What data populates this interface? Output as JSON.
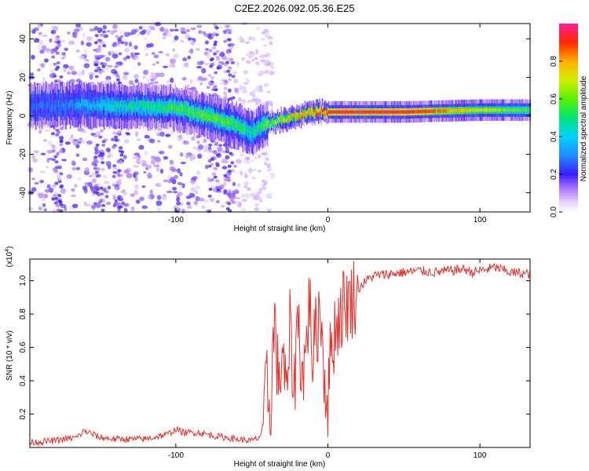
{
  "title": "C2E2.2026.092.05.36.E25",
  "chart_data": [
    {
      "type": "heatmap",
      "name": "spectrogram",
      "xlabel": "Height of straight line (km)",
      "ylabel": "Frequency (Hz)",
      "xlim": [
        -196,
        133
      ],
      "ylim": [
        -50,
        48
      ],
      "xticks": [
        "-100",
        "0",
        "100"
      ],
      "xtick_values": [
        -100,
        0,
        100
      ],
      "yticks": [
        "-40",
        "-20",
        "0",
        "20",
        "40"
      ],
      "ytick_values": [
        -40,
        -20,
        0,
        20,
        40
      ],
      "ridge_x": [
        -196,
        -160,
        -140,
        -120,
        -100,
        -80,
        -60,
        -50,
        -40,
        -30,
        -20,
        -10,
        0,
        50,
        100,
        133
      ],
      "ridge_freq": [
        5,
        6,
        5,
        5,
        4,
        0,
        -5,
        -9,
        -4,
        -2,
        0,
        2,
        2,
        2,
        3,
        3
      ],
      "ridge_amplitude": [
        0.25,
        0.35,
        0.45,
        0.5,
        0.55,
        0.6,
        0.55,
        0.45,
        0.6,
        0.7,
        0.8,
        0.85,
        0.95,
        0.95,
        0.7,
        0.55
      ]
    },
    {
      "type": "colorbar",
      "name": "colorbar",
      "label": "Normalized spectral amplitude",
      "range": [
        0,
        1
      ],
      "ticks": [
        "0.0",
        "0.2",
        "0.4",
        "0.6",
        "0.8"
      ],
      "tick_values": [
        0.0,
        0.2,
        0.4,
        0.6,
        0.8
      ]
    },
    {
      "type": "line",
      "name": "snr",
      "xlabel": "Height of straight line (km)",
      "ylabel": "SNR (10 * v/v)",
      "scale_label": "(x10",
      "scale_exponent": "4",
      "scale_suffix": ")",
      "xlim": [
        -196,
        133
      ],
      "ylim": [
        0,
        1.13
      ],
      "xticks": [
        "-100",
        "0",
        "100"
      ],
      "xtick_values": [
        -100,
        0,
        100
      ],
      "yticks": [
        "0.2",
        "0.4",
        "0.6",
        "0.8",
        "1.0"
      ],
      "ytick_values": [
        0.2,
        0.4,
        0.6,
        0.8,
        1.0
      ],
      "color": "#e8302a",
      "x": [
        -196,
        -180,
        -165,
        -160,
        -150,
        -140,
        -120,
        -105,
        -100,
        -95,
        -85,
        -75,
        -60,
        -50,
        -45,
        -42,
        -40,
        -38,
        -35,
        -32,
        -30,
        -27,
        -25,
        -22,
        -20,
        -17,
        -15,
        -12,
        -10,
        -7,
        -5,
        -2,
        0,
        2,
        5,
        8,
        10,
        15,
        20,
        25,
        30,
        40,
        50,
        60,
        70,
        80,
        90,
        95,
        100,
        110,
        120,
        133
      ],
      "y": [
        0.03,
        0.04,
        0.06,
        0.1,
        0.06,
        0.05,
        0.05,
        0.08,
        0.11,
        0.09,
        0.09,
        0.07,
        0.05,
        0.04,
        0.06,
        0.15,
        0.4,
        0.2,
        0.78,
        0.3,
        0.65,
        0.25,
        0.7,
        0.35,
        0.82,
        0.45,
        0.5,
        0.9,
        0.55,
        0.72,
        0.86,
        0.4,
        0.28,
        0.6,
        0.72,
        0.8,
        0.85,
        0.88,
        0.95,
        1.0,
        1.03,
        1.04,
        1.05,
        1.06,
        1.05,
        1.06,
        1.07,
        1.05,
        1.06,
        1.08,
        1.05,
        1.04
      ]
    }
  ]
}
